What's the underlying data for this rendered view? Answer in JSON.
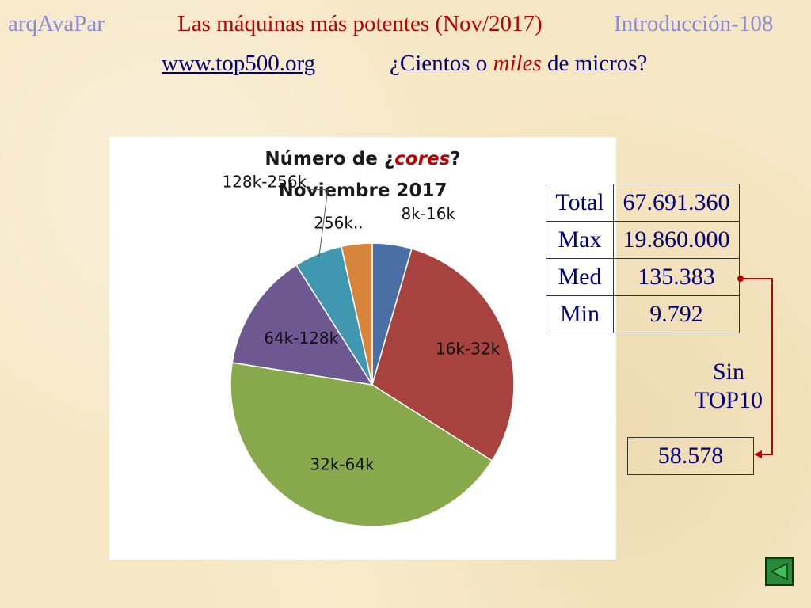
{
  "header": {
    "course": "arqAvaPar",
    "title": "Las máquinas más potentes (Nov/2017)",
    "section": "Introducción-108",
    "link": "www.top500.org",
    "question_prefix": "¿Cientos o ",
    "question_emph": "miles",
    "question_suffix": " de micros?"
  },
  "chart_data": {
    "type": "pie",
    "title_prefix": "Número de ¿",
    "title_emph": "cores",
    "title_suffix": "?",
    "subtitle": "Noviembre 2017",
    "categories": [
      "8k-16k",
      "16k-32k",
      "32k-64k",
      "64k-128k",
      "128k-256k",
      "256k.."
    ],
    "values": [
      4.5,
      29.5,
      43.5,
      13.5,
      5.5,
      3.5
    ],
    "colors": [
      "#4a6fa5",
      "#a8423e",
      "#87a84b",
      "#6e5891",
      "#3f98b0",
      "#d9843b"
    ]
  },
  "stats": {
    "rows": [
      {
        "label": "Total",
        "value": "67.691.360"
      },
      {
        "label": "Max",
        "value": "19.860.000"
      },
      {
        "label": "Med",
        "value": "135.383"
      },
      {
        "label": "Min",
        "value": "9.792"
      }
    ]
  },
  "note": {
    "line1": "Sin",
    "line2": "TOP10",
    "result": "58.578"
  },
  "colors": {
    "accent_red": "#c00000",
    "text_blue": "#000080",
    "muted_blue": "#8a8ad6",
    "nav_green": "#2a8a3a"
  },
  "icons": {
    "nav": "back-arrow-icon"
  }
}
